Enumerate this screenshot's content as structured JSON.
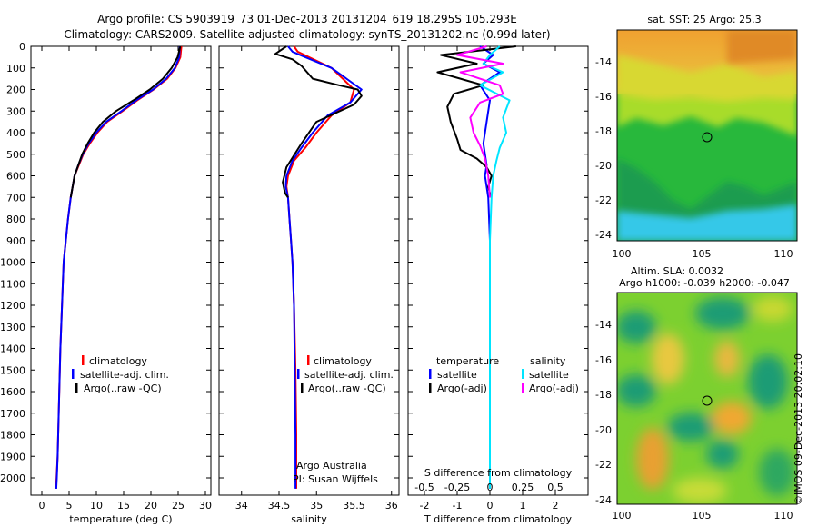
{
  "header": {
    "line1": "Argo profile: CS 5903919_73 01-Dec-2013 20131204_619 18.295S 105.293E",
    "line2": "Climatology: CARS2009. Satellite-adjusted climatology: synTS_20131202.nc (0.99d later)"
  },
  "colors": {
    "climatology": "#ff0000",
    "satellite": "#0000ff",
    "argo": "#000000",
    "sat_salinity": "#00e5ff",
    "argo_salinity": "#ff00ff"
  },
  "chart_data": [
    {
      "id": "temperature",
      "type": "line",
      "xlabel": "temperature (deg C)",
      "ylabel": "",
      "xlim": [
        -2,
        31
      ],
      "ylim": [
        2080,
        0
      ],
      "xticks": [
        0,
        5,
        10,
        15,
        20,
        25,
        30
      ],
      "yticks": [
        0,
        100,
        200,
        300,
        400,
        500,
        600,
        700,
        800,
        900,
        1000,
        1100,
        1200,
        1300,
        1400,
        1500,
        1600,
        1700,
        1800,
        1900,
        2000
      ],
      "legend": [
        "climatology",
        "satellite-adj. clim.",
        "Argo(..raw -QC)"
      ],
      "legend_position": "bottom-center",
      "series": [
        {
          "name": "climatology",
          "color": "#ff0000",
          "x": [
            25.6,
            25.4,
            24.5,
            23.0,
            20.5,
            17.5,
            14.8,
            12.0,
            10.2,
            8.8,
            7.6,
            6.8,
            6.0,
            5.3,
            4.8,
            4.4,
            4.0,
            3.7,
            3.4,
            3.2,
            3.0,
            2.9,
            2.7,
            2.6
          ],
          "y": [
            0,
            50,
            100,
            150,
            200,
            250,
            300,
            350,
            400,
            450,
            500,
            550,
            600,
            700,
            800,
            900,
            1000,
            1200,
            1400,
            1600,
            1800,
            1900,
            2000,
            2050
          ]
        },
        {
          "name": "satellite-adj. clim.",
          "color": "#0000ff",
          "x": [
            25.3,
            25.2,
            24.4,
            22.8,
            20.4,
            17.3,
            14.6,
            11.8,
            10.0,
            8.6,
            7.5,
            6.7,
            6.0,
            5.3,
            4.8,
            4.4,
            4.0,
            3.7,
            3.4,
            3.2,
            3.0,
            2.9,
            2.75,
            2.65
          ],
          "y": [
            0,
            50,
            100,
            150,
            200,
            250,
            300,
            350,
            400,
            450,
            500,
            550,
            600,
            700,
            800,
            900,
            1000,
            1200,
            1400,
            1600,
            1800,
            1900,
            2000,
            2050
          ]
        },
        {
          "name": "Argo(..raw -QC)",
          "color": "#000000",
          "x": [
            25.4,
            24.9,
            23.8,
            22.2,
            19.8,
            16.8,
            13.6,
            11.2,
            9.6,
            8.4,
            7.4,
            6.7,
            6.0,
            5.3
          ],
          "y": [
            0,
            50,
            100,
            150,
            200,
            250,
            300,
            350,
            400,
            450,
            500,
            550,
            600,
            700
          ]
        }
      ]
    },
    {
      "id": "salinity",
      "type": "line",
      "xlabel": "salinity",
      "ylabel": "",
      "xlim": [
        33.7,
        36.1
      ],
      "ylim": [
        2080,
        0
      ],
      "xticks": [
        34,
        34.5,
        35,
        35.5,
        36
      ],
      "legend": [
        "climatology",
        "satellite-adj. clim.",
        "Argo(..raw -QC)"
      ],
      "legend_position": "bottom-center",
      "annotations": [
        "Argo Australia",
        "PI: Susan Wijffels"
      ],
      "series": [
        {
          "name": "climatology",
          "color": "#ff0000",
          "x": [
            34.7,
            34.75,
            34.9,
            35.2,
            35.5,
            35.45,
            35.2,
            35.0,
            34.85,
            34.7,
            34.62,
            34.6,
            34.62,
            34.64,
            34.66,
            34.68,
            34.7,
            34.72,
            34.73,
            34.73
          ],
          "y": [
            0,
            25,
            50,
            100,
            200,
            260,
            320,
            400,
            470,
            530,
            600,
            650,
            700,
            800,
            900,
            1000,
            1200,
            1500,
            1800,
            2050
          ]
        },
        {
          "name": "satellite-adj. clim.",
          "color": "#0000ff",
          "x": [
            34.62,
            34.68,
            34.85,
            35.2,
            35.6,
            35.45,
            35.15,
            34.95,
            34.8,
            34.68,
            34.6,
            34.59,
            34.62,
            34.64,
            34.66,
            34.68,
            34.7,
            34.71,
            34.72,
            34.72
          ],
          "y": [
            0,
            25,
            50,
            100,
            200,
            260,
            320,
            400,
            470,
            530,
            600,
            650,
            700,
            800,
            900,
            1000,
            1200,
            1500,
            1800,
            2050
          ]
        },
        {
          "name": "Argo(..raw -QC)",
          "color": "#000000",
          "x": [
            34.6,
            34.45,
            34.68,
            34.8,
            34.95,
            35.3,
            35.55,
            35.6,
            35.5,
            35.0,
            34.8,
            34.6,
            34.55,
            34.58,
            34.62
          ],
          "y": [
            0,
            35,
            60,
            90,
            150,
            180,
            200,
            230,
            270,
            350,
            450,
            560,
            630,
            680,
            700
          ]
        }
      ]
    },
    {
      "id": "difference",
      "type": "line",
      "xlabel": "T difference from climatology",
      "xlabel_top": "S difference from climatology",
      "xlim": [
        -2.5,
        3.0
      ],
      "ylim": [
        2080,
        0
      ],
      "xticks": [
        -2,
        -1,
        0,
        1,
        2
      ],
      "xticks_s": [
        -0.5,
        -0.25,
        0,
        0.25,
        0.5
      ],
      "legend_temperature_title": "temperature",
      "legend_salinity_title": "salinity",
      "legend_temperature": [
        "satellite",
        "Argo(-adj)"
      ],
      "legend_salinity": [
        "satellite",
        "Argo(-adj)"
      ],
      "series": [
        {
          "name": "T satellite",
          "color": "#0000ff",
          "x": [
            -0.3,
            0.1,
            -0.2,
            0.3,
            -0.3,
            0.0,
            -0.1,
            -0.2,
            -0.1,
            -0.15,
            -0.1,
            -0.05,
            0.0,
            0.0,
            0.0
          ],
          "y": [
            0,
            40,
            80,
            120,
            180,
            250,
            350,
            450,
            550,
            600,
            650,
            700,
            900,
            1400,
            2050
          ]
        },
        {
          "name": "T Argo(-adj)",
          "color": "#000000",
          "x": [
            0.8,
            -1.5,
            -0.4,
            -1.6,
            -0.2,
            -1.1,
            -1.3,
            -1.2,
            -1.0,
            -0.9,
            -0.4,
            -0.1,
            0.05,
            -0.05,
            0.0,
            0.0
          ],
          "y": [
            0,
            40,
            80,
            120,
            180,
            220,
            280,
            350,
            430,
            480,
            520,
            560,
            600,
            650,
            680,
            700
          ]
        },
        {
          "name": "S satellite",
          "color": "#00e5ff",
          "x": [
            0.3,
            0.0,
            -0.2,
            0.4,
            -0.3,
            0.6,
            0.4,
            0.5,
            0.3,
            0.2,
            0.1,
            0.05,
            0.0,
            0.0,
            0.0
          ],
          "y": [
            0,
            40,
            80,
            120,
            180,
            250,
            330,
            400,
            470,
            530,
            600,
            700,
            900,
            1400,
            2050
          ]
        },
        {
          "name": "S Argo(-adj)",
          "color": "#ff00ff",
          "x": [
            -0.1,
            -1.0,
            0.4,
            -0.9,
            0.3,
            0.4,
            -0.3,
            -0.6,
            -0.5,
            -0.3,
            -0.15,
            -0.05,
            0.0
          ],
          "y": [
            0,
            40,
            80,
            120,
            180,
            220,
            260,
            330,
            400,
            460,
            520,
            600,
            700
          ]
        }
      ]
    }
  ],
  "maps": {
    "sst": {
      "title": "sat. SST: 25 Argo: 25.3",
      "yticks": [
        "-14",
        "-16",
        "-18",
        "-20",
        "-22",
        "-24"
      ],
      "xticks": [
        "100",
        "105",
        "110"
      ]
    },
    "sla": {
      "title_line1": "Altim. SLA: 0.0032",
      "title_line2": "Argo h1000: -0.039 h2000: -0.047",
      "yticks": [
        "-14",
        "-16",
        "-18",
        "-20",
        "-22",
        "-24"
      ],
      "xticks": [
        "100",
        "105",
        "110"
      ]
    },
    "footer": "©IMOS 09-Dec-2013 20:02:10"
  }
}
